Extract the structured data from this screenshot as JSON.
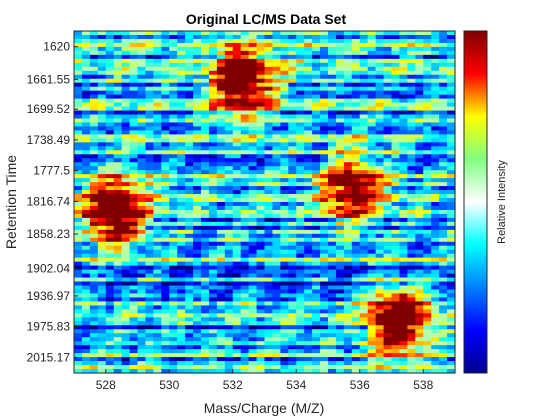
{
  "chart_data": {
    "type": "heatmap",
    "title": "Original LC/MS Data Set",
    "xlabel": "Mass/Charge (M/Z)",
    "ylabel": "Retention Time",
    "colorbar_label": "Relative Intensity",
    "colormap": "jet",
    "xlim": [
      527,
      539
    ],
    "ylim": [
      1600,
      2035
    ],
    "y_reversed": true,
    "grid": false,
    "x_ticks": [
      528,
      530,
      532,
      534,
      536,
      538
    ],
    "y_ticks": [
      1620,
      1661.55,
      1699.52,
      1738.49,
      1777.5,
      1816.74,
      1858.23,
      1902.04,
      1936.97,
      1975.83,
      2015.17
    ],
    "y_tick_labels": [
      "1620",
      "1661.55",
      "1699.52",
      "1738.49",
      "1777.5",
      "1816.74",
      "1858.23",
      "1902.04",
      "1936.97",
      "1975.83",
      "2015.17"
    ],
    "peaks": [
      {
        "mz": 528.1,
        "rt": 1830,
        "intensity": 1.0
      },
      {
        "mz": 532.1,
        "rt": 1665,
        "intensity": 1.0
      },
      {
        "mz": 537.0,
        "rt": 1968,
        "intensity": 1.0
      },
      {
        "mz": 535.6,
        "rt": 1800,
        "intensity": 0.8
      }
    ]
  }
}
